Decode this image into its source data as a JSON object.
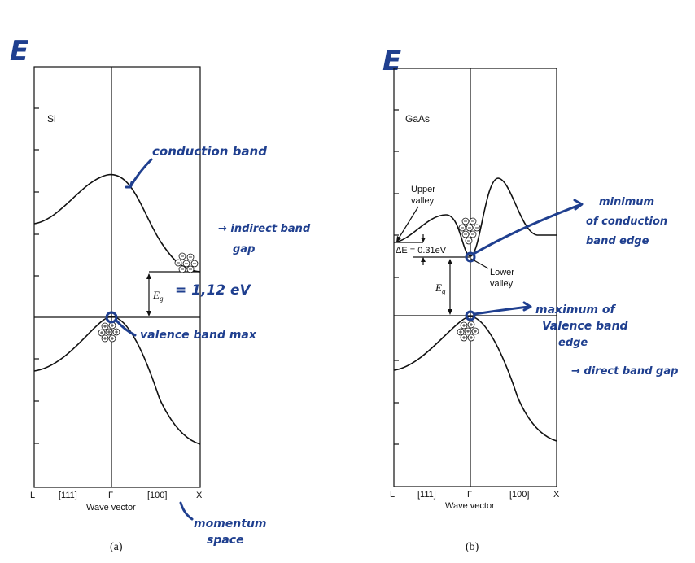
{
  "panel_a": {
    "e_mark": "E",
    "material": "Si",
    "eg_label": "E",
    "eg_sub": "g",
    "eg_value": "= 1,12 eV",
    "x_ticks": [
      "L",
      "[111]",
      "Γ",
      "[100]",
      "X"
    ],
    "x_title": "Wave vector",
    "caption": "(a)",
    "notes": {
      "conduction": "conduction band",
      "indirect_1": "→ indirect band",
      "indirect_2": "gap",
      "valence": "valence band max",
      "momentum_1": "momentum",
      "momentum_2": "space"
    }
  },
  "panel_b": {
    "e_mark": "E",
    "material": "GaAs",
    "upper_valley_1": "Upper",
    "upper_valley_2": "valley",
    "delta_e": "ΔE = 0.31eV",
    "lower_valley_1": "Lower",
    "lower_valley_2": "valley",
    "eg_label": "E",
    "eg_sub": "g",
    "x_ticks": [
      "L",
      "[111]",
      "Γ",
      "[100]",
      "X"
    ],
    "x_title": "Wave vector",
    "caption": "(b)",
    "notes": {
      "min_1": "minimum",
      "min_2": "of conduction",
      "min_3": "band edge",
      "max_1": "maximum of",
      "max_2": "Valence band",
      "max_3": "edge",
      "direct": "→ direct band gap"
    }
  },
  "colors": {
    "ink": "#1f3f8f",
    "line": "#111111"
  }
}
